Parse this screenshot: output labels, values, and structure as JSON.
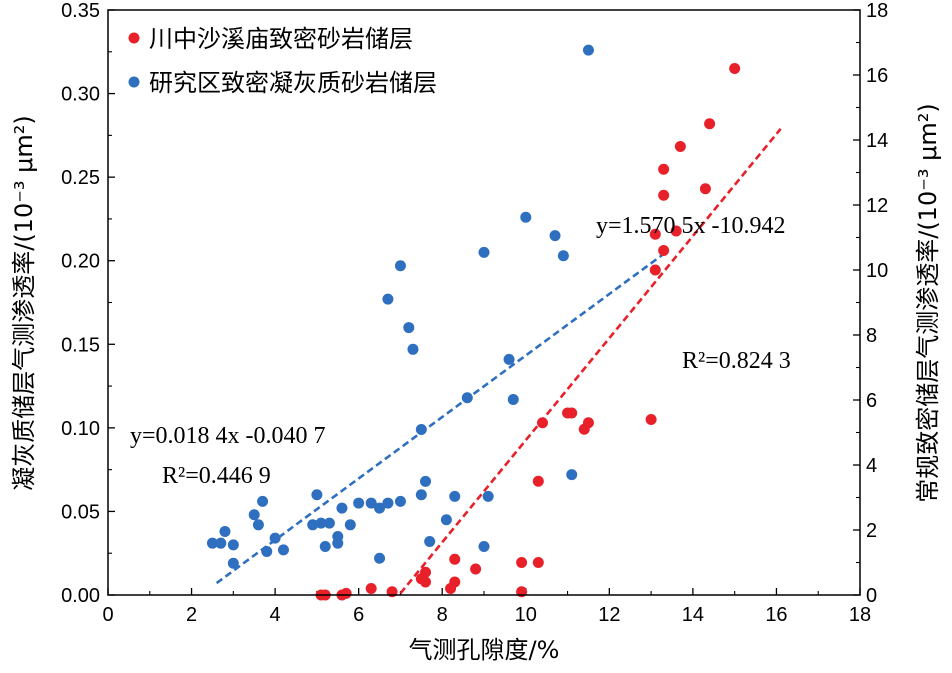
{
  "chart_data": {
    "type": "scatter",
    "xlabel": "气测孔隙度/%",
    "ylabel_left": "凝灰质储层气测渗透率/(10⁻³ μm²)",
    "ylabel_right": "常规致密储层气测渗透率/(10⁻³ μm²)",
    "xlim": [
      0,
      18
    ],
    "x_ticks": [
      "0",
      "2",
      "4",
      "6",
      "8",
      "10",
      "12",
      "14",
      "16",
      "18"
    ],
    "ylim_left": [
      0,
      0.35
    ],
    "y_left_ticks": [
      "0.00",
      "0.05",
      "0.10",
      "0.15",
      "0.20",
      "0.25",
      "0.30",
      "0.35"
    ],
    "ylim_right": [
      0,
      18
    ],
    "y_right_ticks": [
      "0",
      "2",
      "4",
      "6",
      "8",
      "10",
      "12",
      "14",
      "16",
      "18"
    ],
    "legend_position": "top-left",
    "series": [
      {
        "name": "川中沙溪庙致密砂岩储层",
        "color": "#e8202a",
        "axis": "right",
        "points": [
          [
            5.1,
            0.0
          ],
          [
            5.2,
            0.0
          ],
          [
            5.6,
            0.0
          ],
          [
            5.7,
            0.05
          ],
          [
            6.3,
            0.2
          ],
          [
            6.8,
            0.1
          ],
          [
            7.5,
            0.5
          ],
          [
            7.6,
            0.4
          ],
          [
            7.6,
            0.7
          ],
          [
            8.2,
            0.2
          ],
          [
            8.3,
            0.4
          ],
          [
            8.3,
            1.1
          ],
          [
            8.8,
            0.8
          ],
          [
            9.9,
            0.1
          ],
          [
            9.9,
            1.0
          ],
          [
            10.3,
            1.0
          ],
          [
            10.3,
            3.5
          ],
          [
            10.4,
            5.3
          ],
          [
            11.0,
            5.6
          ],
          [
            11.1,
            5.6
          ],
          [
            11.4,
            5.1
          ],
          [
            11.5,
            5.3
          ],
          [
            13.0,
            5.4
          ],
          [
            13.1,
            10.0
          ],
          [
            13.1,
            11.1
          ],
          [
            13.3,
            10.6
          ],
          [
            13.3,
            12.3
          ],
          [
            13.3,
            13.1
          ],
          [
            13.6,
            11.2
          ],
          [
            13.7,
            13.8
          ],
          [
            14.3,
            12.5
          ],
          [
            14.4,
            14.5
          ],
          [
            15.0,
            16.2
          ]
        ]
      },
      {
        "name": "研究区致密凝灰质砂岩储层",
        "color": "#2e6fbf",
        "axis": "left",
        "points": [
          [
            2.5,
            0.031
          ],
          [
            2.7,
            0.031
          ],
          [
            2.8,
            0.038
          ],
          [
            3.0,
            0.03
          ],
          [
            3.0,
            0.019
          ],
          [
            3.5,
            0.048
          ],
          [
            3.6,
            0.042
          ],
          [
            3.7,
            0.056
          ],
          [
            3.8,
            0.026
          ],
          [
            4.0,
            0.034
          ],
          [
            4.2,
            0.027
          ],
          [
            4.9,
            0.042
          ],
          [
            5.0,
            0.06
          ],
          [
            5.1,
            0.043
          ],
          [
            5.2,
            0.029
          ],
          [
            5.3,
            0.043
          ],
          [
            5.5,
            0.035
          ],
          [
            5.5,
            0.031
          ],
          [
            5.6,
            0.052
          ],
          [
            5.8,
            0.042
          ],
          [
            6.0,
            0.055
          ],
          [
            6.3,
            0.055
          ],
          [
            6.5,
            0.052
          ],
          [
            6.5,
            0.022
          ],
          [
            6.7,
            0.055
          ],
          [
            6.7,
            0.177
          ],
          [
            7.0,
            0.197
          ],
          [
            7.0,
            0.056
          ],
          [
            7.2,
            0.16
          ],
          [
            7.3,
            0.147
          ],
          [
            7.5,
            0.099
          ],
          [
            7.5,
            0.06
          ],
          [
            7.6,
            0.068
          ],
          [
            7.7,
            0.032
          ],
          [
            8.1,
            0.045
          ],
          [
            8.3,
            0.059
          ],
          [
            8.6,
            0.118
          ],
          [
            9.0,
            0.205
          ],
          [
            9.0,
            0.029
          ],
          [
            9.1,
            0.059
          ],
          [
            9.6,
            0.141
          ],
          [
            9.7,
            0.117
          ],
          [
            10.0,
            0.226
          ],
          [
            10.7,
            0.215
          ],
          [
            10.9,
            0.203
          ],
          [
            11.1,
            0.072
          ],
          [
            11.5,
            0.326
          ]
        ]
      }
    ],
    "fits": [
      {
        "series": "川中沙溪庙致密砂岩储层",
        "axis": "right",
        "color": "#e8202a",
        "slope": 1.5705,
        "intercept": -10.942,
        "x_range": [
          7.0,
          16.1
        ],
        "equation": "y=1.570 5x -10.942",
        "r2": "R²=0.824 3"
      },
      {
        "series": "研究区致密凝灰质砂岩储层",
        "axis": "left",
        "color": "#2e6fbf",
        "slope": 0.0184,
        "intercept": -0.0407,
        "x_range": [
          2.6,
          13.4
        ],
        "equation": "y=0.018 4x -0.040 7",
        "r2": "R²=0.446 9"
      }
    ]
  }
}
